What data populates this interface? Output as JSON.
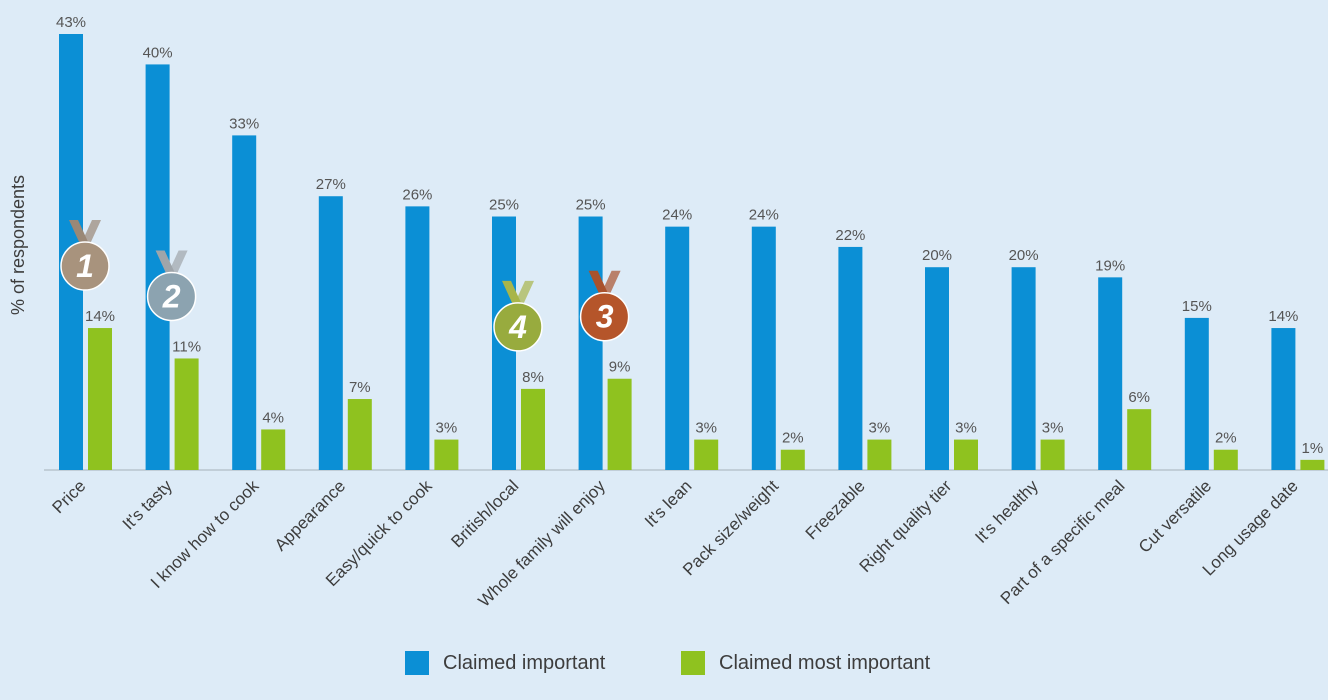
{
  "chart_data": {
    "type": "bar",
    "ylabel": "% of respondents",
    "ylim": [
      0,
      43
    ],
    "categories": [
      "Price",
      "It's tasty",
      "I know how to cook",
      "Appearance",
      "Easy/quick to cook",
      "British/local",
      "Whole family will enjoy",
      "It's lean",
      "Pack size/weight",
      "Freezable",
      "Right quality tier",
      "It's healthy",
      "Part of a specific meal",
      "Cut versatile",
      "Long usage date"
    ],
    "series": [
      {
        "name": "Claimed important",
        "color": "#0b8fd5",
        "values": [
          43,
          40,
          33,
          27,
          26,
          25,
          25,
          24,
          24,
          22,
          20,
          20,
          19,
          15,
          14
        ],
        "labels": [
          "43%",
          "40%",
          "33%",
          "27%",
          "26%",
          "25%",
          "25%",
          "24%",
          "24%",
          "22%",
          "20%",
          "20%",
          "19%",
          "15%",
          "14%"
        ]
      },
      {
        "name": "Claimed most important",
        "color": "#8fc21f",
        "values": [
          14,
          11,
          4,
          7,
          3,
          8,
          9,
          3,
          2,
          3,
          3,
          3,
          6,
          2,
          1
        ],
        "labels": [
          "14%",
          "11%",
          "4%",
          "7%",
          "3%",
          "8%",
          "9%",
          "3%",
          "2%",
          "3%",
          "3%",
          "3%",
          "6%",
          "2%",
          "1%"
        ]
      }
    ],
    "medals": [
      {
        "rank": "1",
        "category_index": 0,
        "color": "#a8937d",
        "ribbon": "#9a8876"
      },
      {
        "rank": "2",
        "category_index": 1,
        "color": "#8ca3b0",
        "ribbon": "#9fa5aa"
      },
      {
        "rank": "4",
        "category_index": 5,
        "color": "#98ab3e",
        "ribbon": "#a8b54a"
      },
      {
        "rank": "3",
        "category_index": 6,
        "color": "#b5552a",
        "ribbon": "#a9522d"
      }
    ]
  }
}
